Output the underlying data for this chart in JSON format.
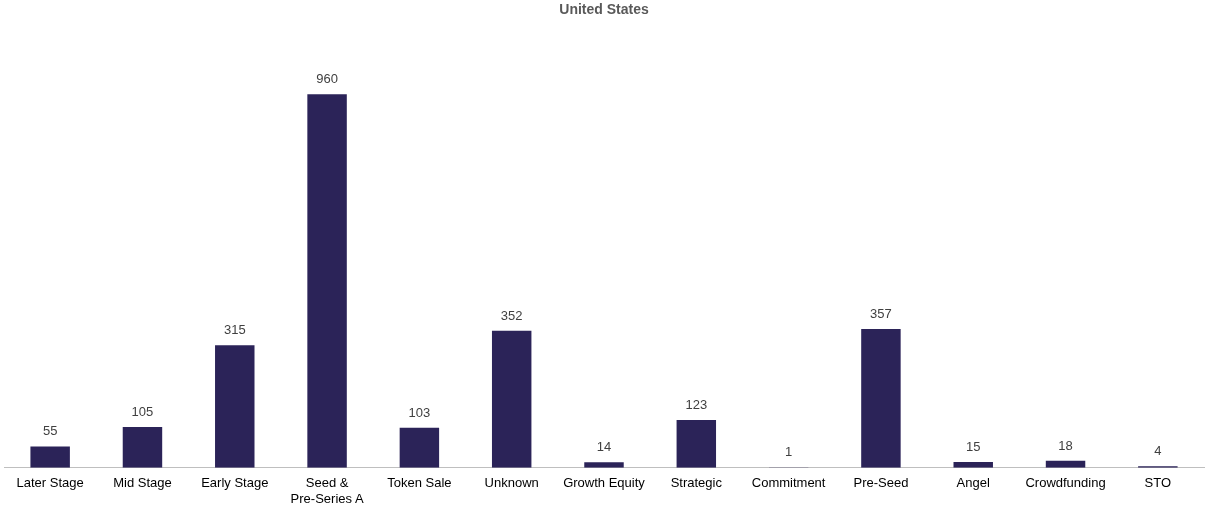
{
  "chart_data": {
    "type": "bar",
    "title": "United States",
    "categories": [
      "Later Stage",
      "Mid Stage",
      "Early Stage",
      "Seed & Pre-Series A",
      "Token Sale",
      "Unknown",
      "Growth Equity",
      "Strategic",
      "Commitment",
      "Pre-Seed",
      "Angel",
      "Crowdfunding",
      "STO"
    ],
    "values": [
      55,
      105,
      315,
      960,
      103,
      352,
      14,
      123,
      1,
      357,
      15,
      18,
      4
    ],
    "color": "#2b2358",
    "data_labels": true,
    "grid": false,
    "legend": false
  }
}
